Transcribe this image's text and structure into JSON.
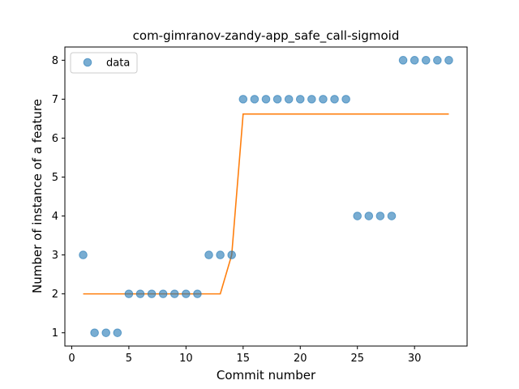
{
  "chart_data": {
    "type": "scatter",
    "title": "com-gimranov-zandy-app_safe_call-sigmoid",
    "xlabel": "Commit number",
    "ylabel": "Number of instance of a feature",
    "xlim": [
      -0.6,
      34.6
    ],
    "ylim": [
      0.66,
      8.34
    ],
    "xticks": [
      0,
      5,
      10,
      15,
      20,
      25,
      30
    ],
    "yticks": [
      1,
      2,
      3,
      4,
      5,
      6,
      7,
      8
    ],
    "grid": false,
    "legend_position": "upper-left",
    "colors": {
      "data": "#1f77b4",
      "fit": "#ff7f0e"
    },
    "series": [
      {
        "name": "data",
        "kind": "scatter",
        "x": [
          1,
          2,
          3,
          4,
          5,
          6,
          7,
          8,
          9,
          10,
          11,
          12,
          13,
          14,
          15,
          16,
          17,
          18,
          19,
          20,
          21,
          22,
          23,
          24,
          25,
          26,
          27,
          28,
          29,
          30,
          31,
          32,
          33
        ],
        "y": [
          3,
          1,
          1,
          1,
          2,
          2,
          2,
          2,
          2,
          2,
          2,
          3,
          3,
          3,
          7,
          7,
          7,
          7,
          7,
          7,
          7,
          7,
          7,
          7,
          4,
          4,
          4,
          4,
          8,
          8,
          8,
          8,
          8
        ]
      },
      {
        "kind": "line",
        "x": [
          1,
          2,
          3,
          4,
          5,
          6,
          7,
          8,
          9,
          10,
          11,
          12,
          13,
          14,
          15,
          16,
          17,
          18,
          19,
          20,
          21,
          22,
          23,
          24,
          25,
          26,
          27,
          28,
          29,
          30,
          31,
          32,
          33
        ],
        "y": [
          2,
          2,
          2,
          2,
          2,
          2,
          2,
          2,
          2,
          2,
          2,
          2,
          2,
          3.0,
          6.62,
          6.62,
          6.62,
          6.62,
          6.62,
          6.62,
          6.62,
          6.62,
          6.62,
          6.62,
          6.62,
          6.62,
          6.62,
          6.62,
          6.62,
          6.62,
          6.62,
          6.62,
          6.62
        ]
      }
    ]
  }
}
